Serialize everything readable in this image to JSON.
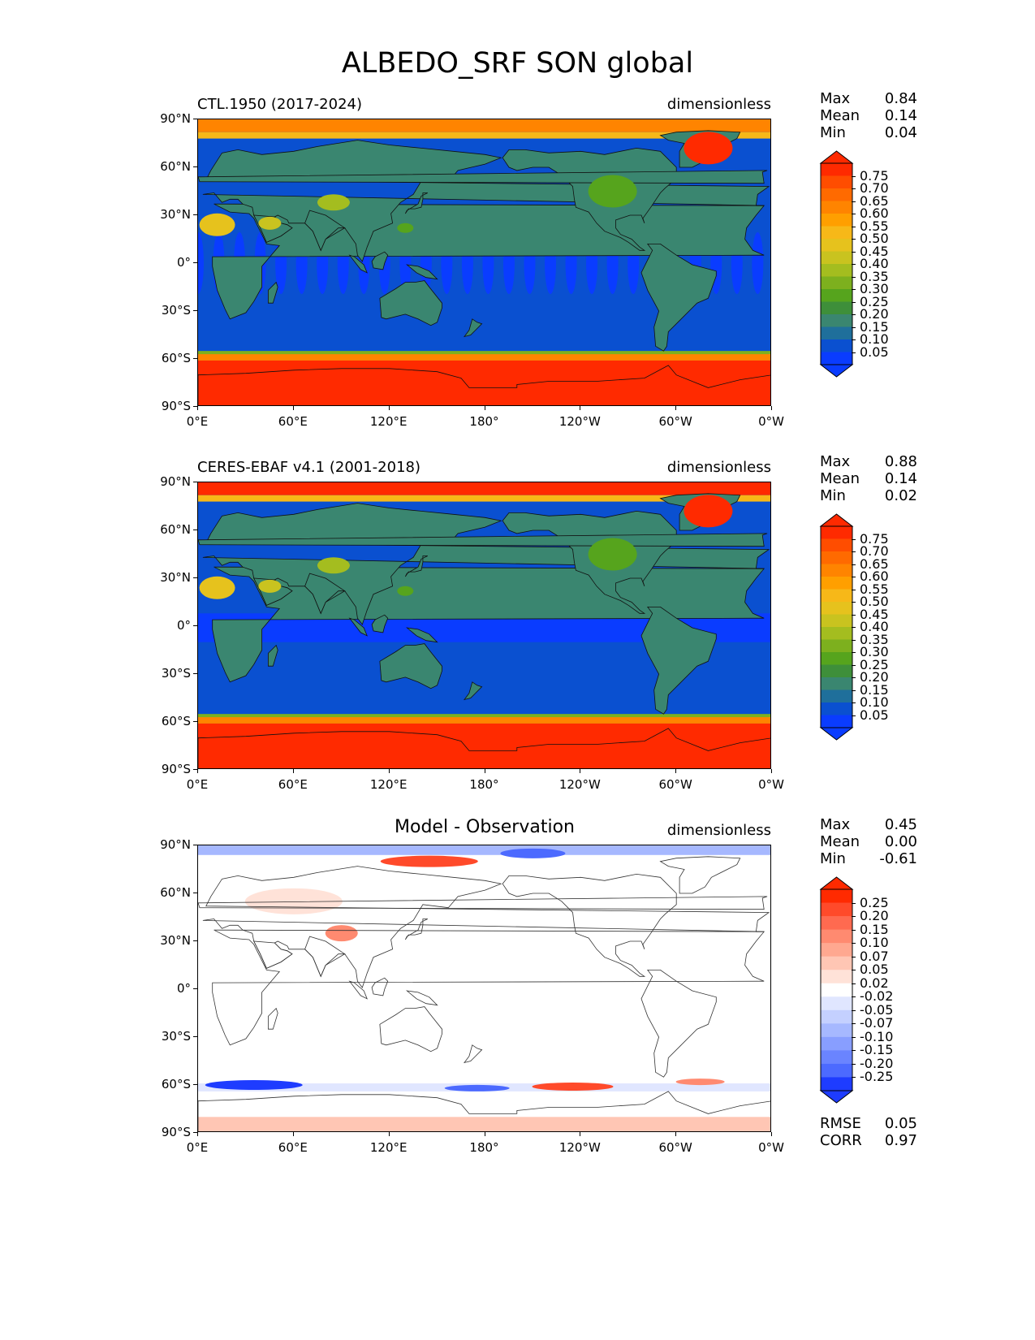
{
  "figure": {
    "title": "ALBEDO_SRF SON global"
  },
  "axes": {
    "lat_ticks": [
      "90°N",
      "60°N",
      "30°N",
      "0°",
      "30°S",
      "60°S",
      "90°S"
    ],
    "lon_ticks": [
      "0°E",
      "60°E",
      "120°E",
      "180°",
      "120°W",
      "60°W",
      "0°W"
    ]
  },
  "panels": [
    {
      "name": "CTL.1950 (2017-2024)",
      "units": "dimensionless",
      "stats": [
        {
          "label": "Max",
          "value": "0.84"
        },
        {
          "label": "Mean",
          "value": "0.14"
        },
        {
          "label": "Min",
          "value": "0.04"
        }
      ],
      "colorbar": {
        "labels": [
          "0.75",
          "0.70",
          "0.65",
          "0.60",
          "0.55",
          "0.50",
          "0.45",
          "0.40",
          "0.35",
          "0.30",
          "0.25",
          "0.20",
          "0.15",
          "0.10",
          "0.05"
        ],
        "colors": [
          "#ff2a00",
          "#ff4d00",
          "#ff6a00",
          "#ff8400",
          "#ff9f00",
          "#f7b818",
          "#e6c21d",
          "#c9c31f",
          "#a4bd1f",
          "#7db01e",
          "#56a41d",
          "#3e8f3a",
          "#3a8670",
          "#1f6f9b",
          "#0a50d0",
          "#0a3cff"
        ]
      },
      "stats_after": []
    },
    {
      "name": "CERES-EBAF v4.1 (2001-2018)",
      "units": "dimensionless",
      "stats": [
        {
          "label": "Max",
          "value": "0.88"
        },
        {
          "label": "Mean",
          "value": "0.14"
        },
        {
          "label": "Min",
          "value": "0.02"
        }
      ],
      "colorbar": {
        "labels": [
          "0.75",
          "0.70",
          "0.65",
          "0.60",
          "0.55",
          "0.50",
          "0.45",
          "0.40",
          "0.35",
          "0.30",
          "0.25",
          "0.20",
          "0.15",
          "0.10",
          "0.05"
        ],
        "colors": [
          "#ff2a00",
          "#ff4d00",
          "#ff6a00",
          "#ff8400",
          "#ff9f00",
          "#f7b818",
          "#e6c21d",
          "#c9c31f",
          "#a4bd1f",
          "#7db01e",
          "#56a41d",
          "#3e8f3a",
          "#3a8670",
          "#1f6f9b",
          "#0a50d0",
          "#0a3cff"
        ]
      },
      "stats_after": []
    },
    {
      "name": "Model - Observation",
      "units": "dimensionless",
      "stats": [
        {
          "label": "Max",
          "value": "0.45"
        },
        {
          "label": "Mean",
          "value": "0.00"
        },
        {
          "label": "Min",
          "value": "-0.61"
        }
      ],
      "colorbar": {
        "labels": [
          "0.25",
          "0.20",
          "0.15",
          "0.10",
          "0.07",
          "0.05",
          "0.02",
          "-0.02",
          "-0.05",
          "-0.07",
          "-0.10",
          "-0.15",
          "-0.20",
          "-0.25"
        ],
        "colors": [
          "#ff2a00",
          "#ff4a2a",
          "#ff6a50",
          "#ff8a70",
          "#ffa890",
          "#ffc6b4",
          "#ffe2d8",
          "#ffffff",
          "#e0e6ff",
          "#c4d0ff",
          "#a6b8ff",
          "#889eff",
          "#6a84ff",
          "#4c6aff",
          "#1e3cff"
        ]
      },
      "stats_after": [
        {
          "label": "RMSE",
          "value": "0.05"
        },
        {
          "label": "CORR",
          "value": "0.97"
        }
      ]
    }
  ]
}
